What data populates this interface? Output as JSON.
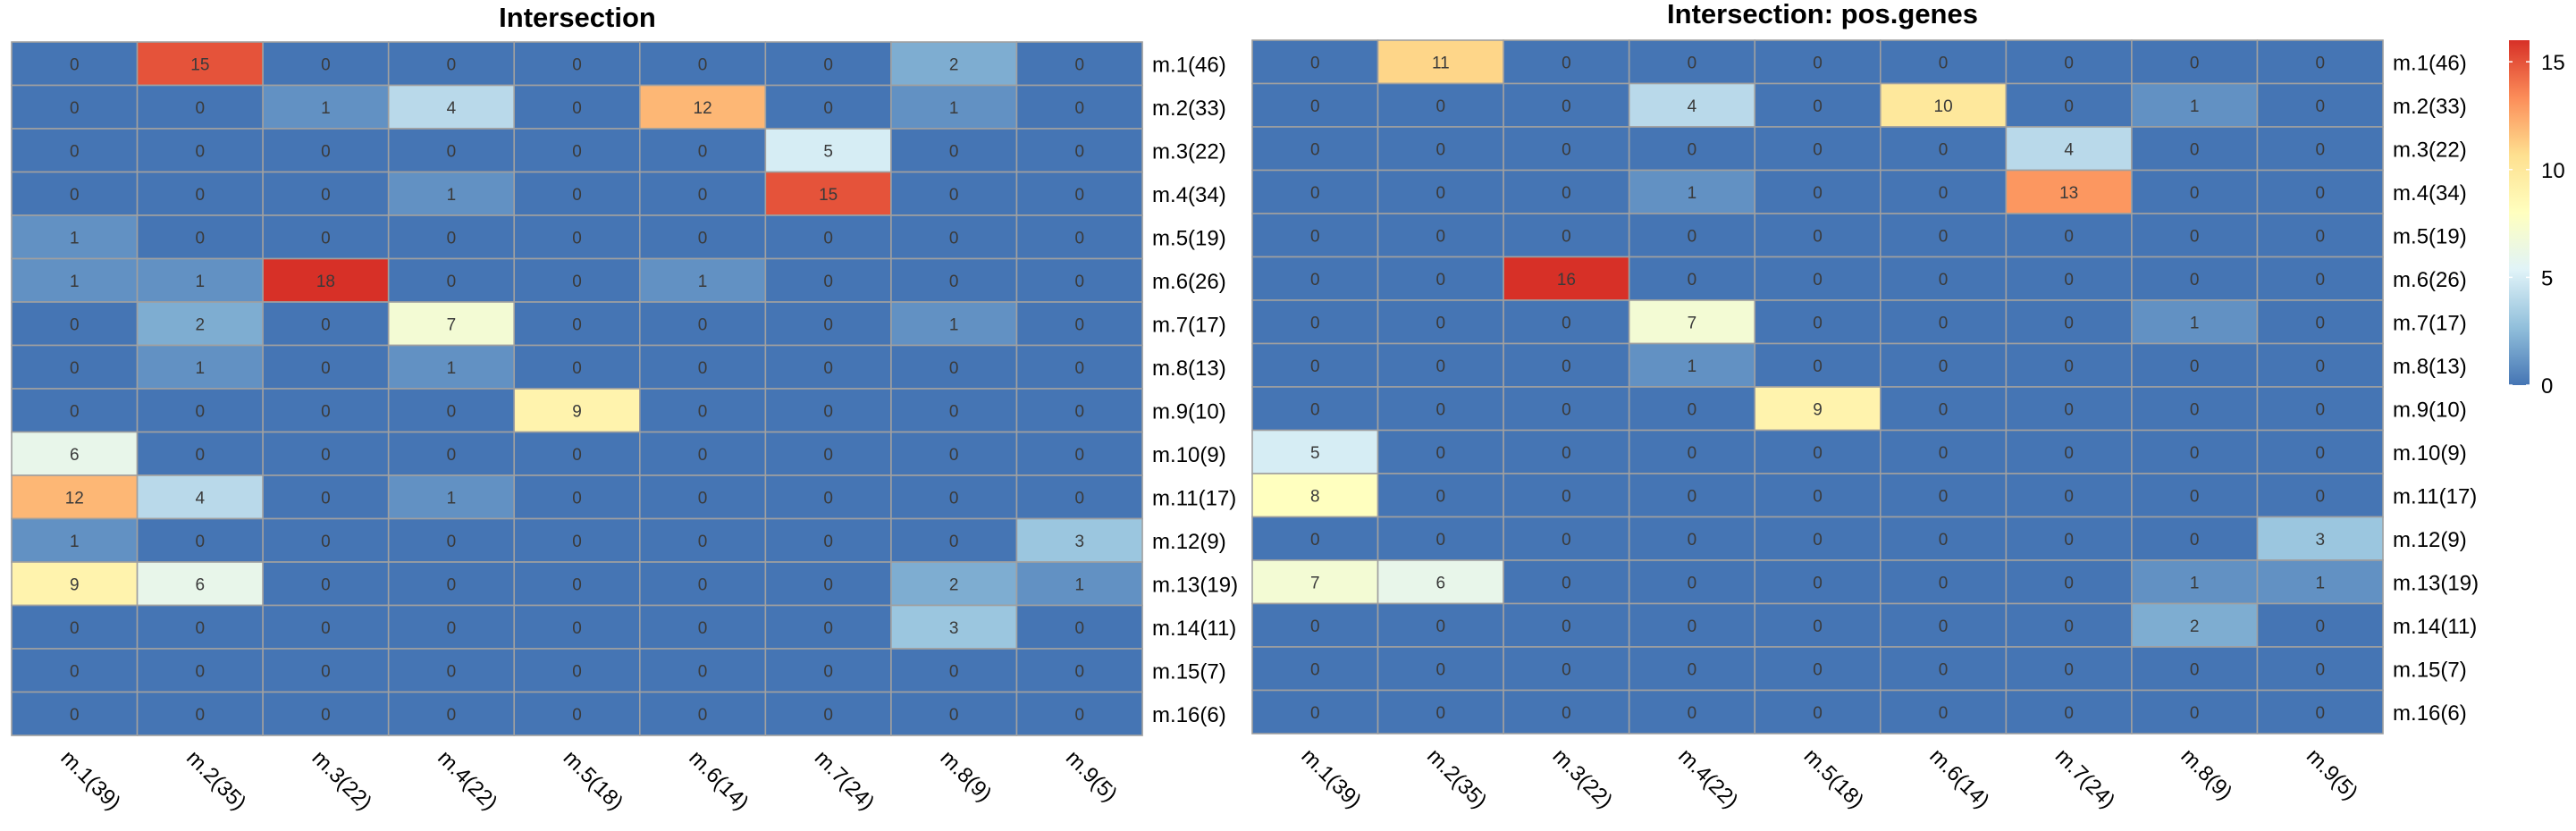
{
  "chart_data": [
    {
      "type": "heatmap",
      "title": "Intersection",
      "x_labels": [
        "m.1(39)",
        "m.2(35)",
        "m.3(22)",
        "m.4(22)",
        "m.5(18)",
        "m.6(14)",
        "m.7(24)",
        "m.8(9)",
        "m.9(5)"
      ],
      "y_labels": [
        "m.1(46)",
        "m.2(33)",
        "m.3(22)",
        "m.4(34)",
        "m.5(19)",
        "m.6(26)",
        "m.7(17)",
        "m.8(13)",
        "m.9(10)",
        "m.10(9)",
        "m.11(17)",
        "m.12(9)",
        "m.13(19)",
        "m.14(11)",
        "m.15(7)",
        "m.16(6)"
      ],
      "values": [
        [
          0,
          15,
          0,
          0,
          0,
          0,
          0,
          2,
          0
        ],
        [
          0,
          0,
          1,
          4,
          0,
          12,
          0,
          1,
          0
        ],
        [
          0,
          0,
          0,
          0,
          0,
          0,
          5,
          0,
          0
        ],
        [
          0,
          0,
          0,
          1,
          0,
          0,
          15,
          0,
          0
        ],
        [
          1,
          0,
          0,
          0,
          0,
          0,
          0,
          0,
          0
        ],
        [
          1,
          1,
          18,
          0,
          0,
          1,
          0,
          0,
          0
        ],
        [
          0,
          2,
          0,
          7,
          0,
          0,
          0,
          1,
          0
        ],
        [
          0,
          1,
          0,
          1,
          0,
          0,
          0,
          0,
          0
        ],
        [
          0,
          0,
          0,
          0,
          9,
          0,
          0,
          0,
          0
        ],
        [
          6,
          0,
          0,
          0,
          0,
          0,
          0,
          0,
          0
        ],
        [
          12,
          4,
          0,
          1,
          0,
          0,
          0,
          0,
          0
        ],
        [
          1,
          0,
          0,
          0,
          0,
          0,
          0,
          0,
          3
        ],
        [
          9,
          6,
          0,
          0,
          0,
          0,
          0,
          2,
          1
        ],
        [
          0,
          0,
          0,
          0,
          0,
          0,
          0,
          3,
          0
        ],
        [
          0,
          0,
          0,
          0,
          0,
          0,
          0,
          0,
          0
        ],
        [
          0,
          0,
          0,
          0,
          0,
          0,
          0,
          0,
          0
        ]
      ]
    },
    {
      "type": "heatmap",
      "title": "Intersection: pos.genes",
      "x_labels": [
        "m.1(39)",
        "m.2(35)",
        "m.3(22)",
        "m.4(22)",
        "m.5(18)",
        "m.6(14)",
        "m.7(24)",
        "m.8(9)",
        "m.9(5)"
      ],
      "y_labels": [
        "m.1(46)",
        "m.2(33)",
        "m.3(22)",
        "m.4(34)",
        "m.5(19)",
        "m.6(26)",
        "m.7(17)",
        "m.8(13)",
        "m.9(10)",
        "m.10(9)",
        "m.11(17)",
        "m.12(9)",
        "m.13(19)",
        "m.14(11)",
        "m.15(7)",
        "m.16(6)"
      ],
      "values": [
        [
          0,
          11,
          0,
          0,
          0,
          0,
          0,
          0,
          0
        ],
        [
          0,
          0,
          0,
          4,
          0,
          10,
          0,
          1,
          0
        ],
        [
          0,
          0,
          0,
          0,
          0,
          0,
          4,
          0,
          0
        ],
        [
          0,
          0,
          0,
          1,
          0,
          0,
          13,
          0,
          0
        ],
        [
          0,
          0,
          0,
          0,
          0,
          0,
          0,
          0,
          0
        ],
        [
          0,
          0,
          16,
          0,
          0,
          0,
          0,
          0,
          0
        ],
        [
          0,
          0,
          0,
          7,
          0,
          0,
          0,
          1,
          0
        ],
        [
          0,
          0,
          0,
          1,
          0,
          0,
          0,
          0,
          0
        ],
        [
          0,
          0,
          0,
          0,
          9,
          0,
          0,
          0,
          0
        ],
        [
          5,
          0,
          0,
          0,
          0,
          0,
          0,
          0,
          0
        ],
        [
          8,
          0,
          0,
          0,
          0,
          0,
          0,
          0,
          0
        ],
        [
          0,
          0,
          0,
          0,
          0,
          0,
          0,
          0,
          3
        ],
        [
          7,
          6,
          0,
          0,
          0,
          0,
          0,
          1,
          1
        ],
        [
          0,
          0,
          0,
          0,
          0,
          0,
          0,
          2,
          0
        ],
        [
          0,
          0,
          0,
          0,
          0,
          0,
          0,
          0,
          0
        ],
        [
          0,
          0,
          0,
          0,
          0,
          0,
          0,
          0,
          0
        ]
      ]
    }
  ],
  "color_scale": {
    "min": 0,
    "max": 16,
    "ticks": [
      0,
      5,
      10,
      15
    ],
    "colors": [
      "#4575b4",
      "#91bfdb",
      "#e0f3f8",
      "#ffffbf",
      "#fee090",
      "#fc8d59",
      "#d73027"
    ]
  }
}
